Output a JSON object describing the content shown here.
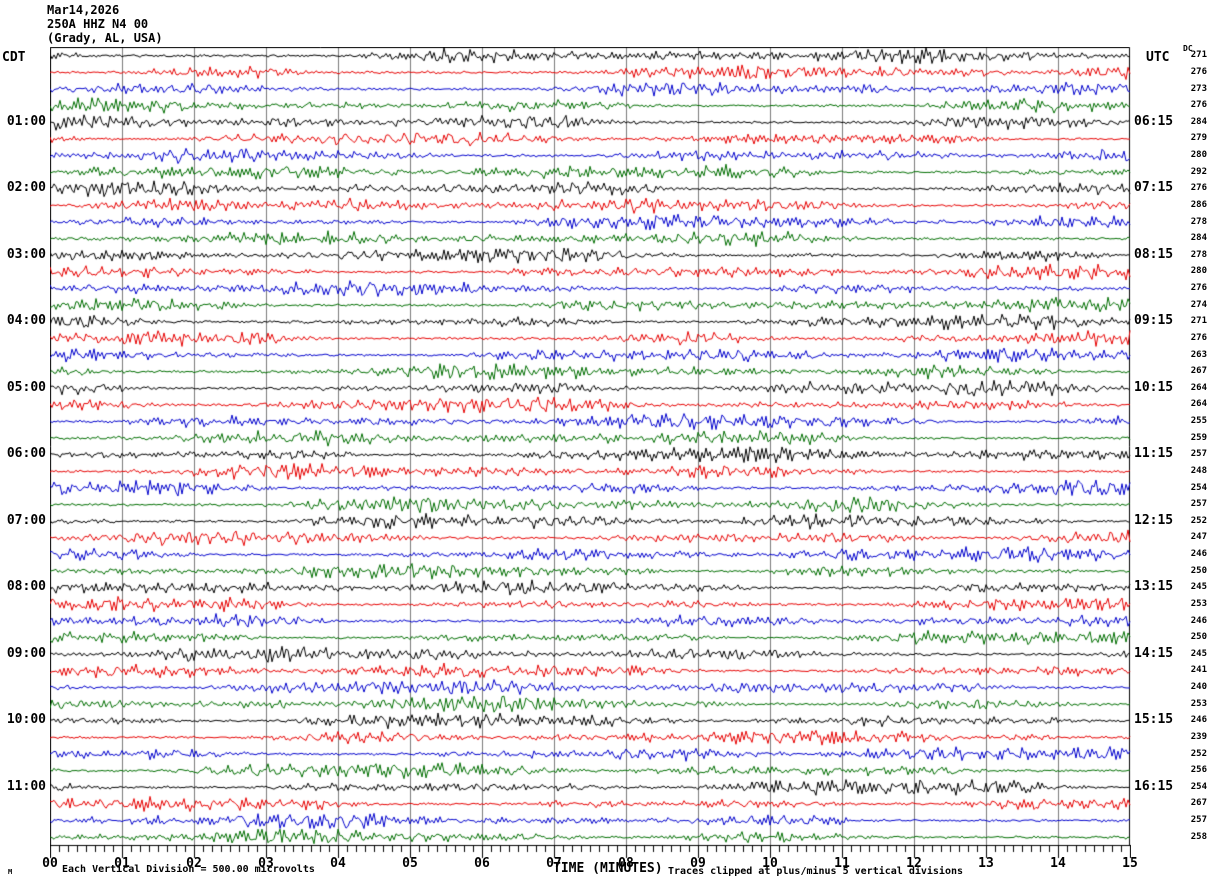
{
  "header": {
    "date": "Mar14,2026",
    "station": "250A HHZ N4 00",
    "location": "(Grady, AL, USA)"
  },
  "axes": {
    "left_timezone": "CDT",
    "right_timezone": "UTC",
    "dc_header": "DC",
    "xlabel": "TIME (MINUTES)"
  },
  "footer": {
    "watermark": "M",
    "division_note": "Each Vertical Division =  500.00 microvolts",
    "clip_note": "Traces clipped at plus/minus 5 vertical divisions"
  },
  "chart_data": {
    "type": "line",
    "subtype": "helicorder_seismogram",
    "title": "Mar14,2026 250A HHZ N4 00 (Grady, AL, USA)",
    "xlabel": "TIME (MINUTES)",
    "x_range_minutes": [
      0,
      15
    ],
    "x_ticks": [
      "00",
      "01",
      "02",
      "03",
      "04",
      "05",
      "06",
      "07",
      "08",
      "09",
      "10",
      "11",
      "12",
      "13",
      "14",
      "15"
    ],
    "minor_ticks_per_minute": 8,
    "rows_total": 48,
    "minutes_per_row": 15,
    "trace_color_cycle": [
      "#000000",
      "#e60000",
      "#0000cc",
      "#006e00"
    ],
    "grid_color": "#7a7a7a",
    "border_color": "#000000",
    "hour_labels": [
      {
        "cdt": "01:00",
        "utc": "06:15"
      },
      {
        "cdt": "02:00",
        "utc": "07:15"
      },
      {
        "cdt": "03:00",
        "utc": "08:15"
      },
      {
        "cdt": "04:00",
        "utc": "09:15"
      },
      {
        "cdt": "05:00",
        "utc": "10:15"
      },
      {
        "cdt": "06:00",
        "utc": "11:15"
      },
      {
        "cdt": "07:00",
        "utc": "12:15"
      },
      {
        "cdt": "08:00",
        "utc": "13:15"
      },
      {
        "cdt": "09:00",
        "utc": "14:15"
      },
      {
        "cdt": "10:00",
        "utc": "15:15"
      },
      {
        "cdt": "11:00",
        "utc": "16:15"
      }
    ],
    "dc_offsets": [
      271,
      276,
      273,
      276,
      284,
      279,
      280,
      292,
      276,
      286,
      278,
      284,
      278,
      280,
      276,
      274,
      271,
      276,
      263,
      267,
      264,
      264,
      255,
      259,
      257,
      248,
      254,
      257,
      252,
      247,
      246,
      250,
      245,
      253,
      246,
      250,
      245,
      241,
      240,
      253,
      246,
      239,
      252,
      256,
      254,
      267,
      257,
      258
    ],
    "clip_divisions": 5,
    "microvolts_per_division": "500.00"
  }
}
